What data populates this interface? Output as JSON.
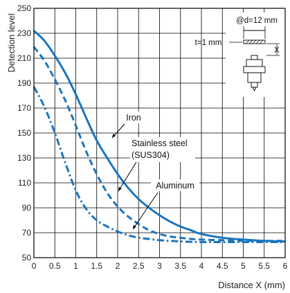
{
  "chart_data": {
    "type": "line",
    "xlabel": "Distance X (mm)",
    "ylabel": "Detection level",
    "xlim": [
      0,
      6
    ],
    "ylim": [
      50,
      250
    ],
    "x_ticks": [
      "0",
      "0.5",
      "1",
      "1.5",
      "2",
      "2.5",
      "3",
      "3.5",
      "4",
      "4.5",
      "5",
      "5.5",
      "6"
    ],
    "y_ticks": [
      "50",
      "70",
      "90",
      "110",
      "130",
      "150",
      "170",
      "190",
      "210",
      "230",
      "250"
    ],
    "grid": true,
    "color": "#1a74bd",
    "series": [
      {
        "name": "Iron",
        "style": "solid",
        "x": [
          0,
          0.25,
          0.5,
          0.75,
          1,
          1.25,
          1.5,
          1.75,
          2,
          2.25,
          2.5,
          2.75,
          3,
          3.25,
          3.5,
          3.75,
          4,
          4.5,
          5,
          5.5,
          6
        ],
        "y": [
          232,
          224,
          212,
          198,
          181,
          162,
          144,
          130,
          117,
          106,
          97,
          90,
          84,
          79,
          75,
          72,
          69,
          66,
          64.5,
          63.5,
          63
        ]
      },
      {
        "name": "Stainless steel (SUS304)",
        "style": "dashed",
        "x": [
          0,
          0.25,
          0.5,
          0.75,
          1,
          1.25,
          1.5,
          1.75,
          2,
          2.25,
          2.5,
          2.75,
          3,
          3.25,
          3.5,
          3.75,
          4,
          4.5,
          5,
          5.5,
          6
        ],
        "y": [
          219,
          208,
          193,
          176,
          156,
          135,
          117,
          102,
          91,
          83,
          77,
          72,
          69,
          67,
          66,
          65,
          64.5,
          64,
          63.5,
          63.5,
          63.5
        ]
      },
      {
        "name": "Aluminum",
        "style": "dashdot",
        "x": [
          0,
          0.25,
          0.5,
          0.75,
          1,
          1.25,
          1.5,
          1.75,
          2,
          2.25,
          2.5,
          2.75,
          3,
          3.25,
          3.5,
          3.75,
          4,
          4.5,
          5,
          5.5,
          6
        ],
        "y": [
          187,
          171,
          150,
          126,
          104,
          89,
          80,
          75,
          71,
          68,
          66,
          65,
          64,
          63.5,
          63,
          62.7,
          62.5,
          62.5,
          62.5,
          62.5,
          62.5
        ]
      }
    ],
    "annotations": [
      {
        "text": "Iron",
        "series": "Iron"
      },
      {
        "lines": [
          "Stainless steel",
          "(SUS304)"
        ],
        "series": "Stainless steel (SUS304)"
      },
      {
        "text": "Aluminum",
        "series": "Aluminum"
      }
    ],
    "inset": {
      "diameter_label": "@d=12 mm",
      "thickness_label": "t=1 mm",
      "distance_label": "X"
    }
  }
}
